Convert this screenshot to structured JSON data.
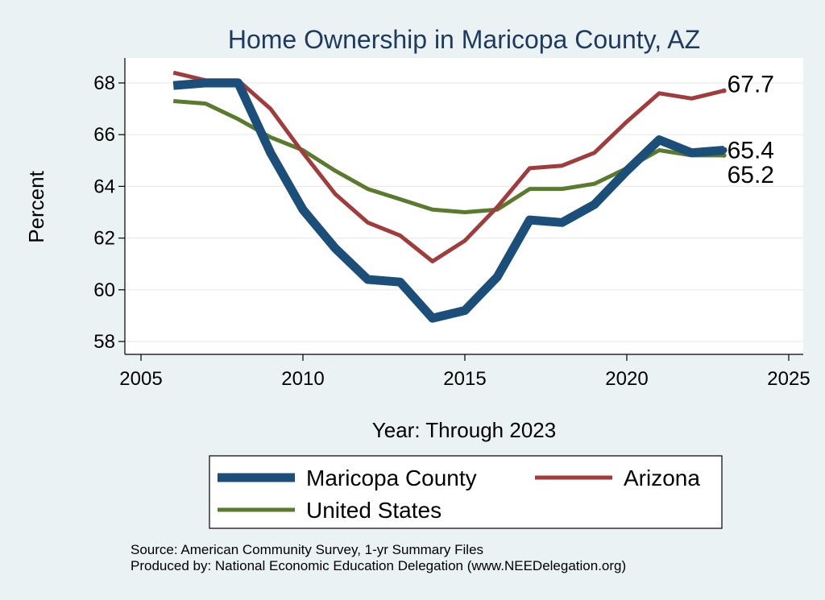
{
  "chart_data": {
    "type": "line",
    "title": "Home Ownership in Maricopa County, AZ",
    "xlabel": "Year: Through 2023",
    "ylabel": "Percent",
    "xlim": [
      2005,
      2025
    ],
    "ylim": [
      58,
      69
    ],
    "x_ticks": [
      2005,
      2010,
      2015,
      2020,
      2025
    ],
    "y_ticks": [
      58,
      60,
      62,
      64,
      66,
      68
    ],
    "grid": true,
    "legend_position": "bottom",
    "x": [
      2006,
      2007,
      2008,
      2009,
      2010,
      2011,
      2012,
      2013,
      2014,
      2015,
      2016,
      2017,
      2018,
      2019,
      2020,
      2021,
      2022,
      2023
    ],
    "series": [
      {
        "name": "Maricopa County",
        "color": "#1b4f7a",
        "values": [
          67.9,
          68.0,
          68.0,
          65.3,
          63.1,
          61.6,
          60.4,
          60.3,
          58.9,
          59.2,
          60.5,
          62.7,
          62.6,
          63.3,
          64.6,
          65.8,
          65.3,
          65.4
        ],
        "end_label": "65.4"
      },
      {
        "name": "Arizona",
        "color": "#a23b3b",
        "values": [
          68.4,
          68.1,
          68.1,
          67.0,
          65.3,
          63.7,
          62.6,
          62.1,
          61.1,
          61.9,
          63.2,
          64.7,
          64.8,
          65.3,
          66.5,
          67.6,
          67.4,
          67.7
        ],
        "end_label": "67.7"
      },
      {
        "name": "United States",
        "color": "#5a7a2c",
        "values": [
          67.3,
          67.2,
          66.6,
          65.9,
          65.4,
          64.6,
          63.9,
          63.5,
          63.1,
          63.0,
          63.1,
          63.9,
          63.9,
          64.1,
          64.7,
          65.4,
          65.2,
          65.2
        ],
        "end_label": "65.2"
      }
    ],
    "source_lines": [
      "Source: American Community Survey, 1-yr Summary Files",
      "Produced by: National Economic Education Delegation (www.NEEDelegation.org)"
    ]
  }
}
